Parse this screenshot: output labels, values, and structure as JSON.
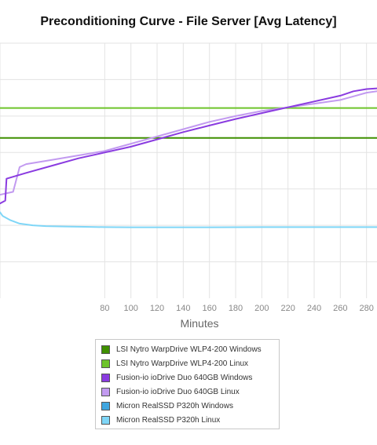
{
  "chart_data": {
    "type": "line",
    "title": "Preconditioning Curve - File Server [Avg Latency]",
    "xlabel": "Minutes",
    "ylabel": "",
    "xlim": [
      0,
      288
    ],
    "ylim": [
      0,
      17.5
    ],
    "x_ticks": [
      80,
      100,
      120,
      140,
      160,
      180,
      200,
      220,
      240,
      260,
      280
    ],
    "grid": true,
    "legend_position": "bottom-center",
    "series": [
      {
        "name": "LSI Nytro WarpDrive WLP4-200 Windows",
        "color": "#3f8f00",
        "x": [
          0,
          20,
          40,
          60,
          80,
          100,
          120,
          140,
          160,
          180,
          200,
          220,
          240,
          260,
          280,
          288
        ],
        "y": [
          11.0,
          11.0,
          11.0,
          11.0,
          11.0,
          11.0,
          11.0,
          11.0,
          11.0,
          11.0,
          11.0,
          11.0,
          11.0,
          11.0,
          11.0,
          11.0
        ]
      },
      {
        "name": "LSI Nytro WarpDrive WLP4-200 Linux",
        "color": "#6ec42a",
        "x": [
          0,
          20,
          40,
          60,
          80,
          100,
          120,
          140,
          160,
          180,
          200,
          220,
          240,
          260,
          280,
          288
        ],
        "y": [
          13.05,
          13.05,
          13.05,
          13.05,
          13.05,
          13.05,
          13.05,
          13.05,
          13.05,
          13.05,
          13.05,
          13.05,
          13.05,
          13.05,
          13.05,
          13.05
        ]
      },
      {
        "name": "Fusion-io ioDrive Duo 640GB Windows",
        "color": "#8a3be0",
        "x": [
          0,
          4,
          5,
          20,
          40,
          60,
          80,
          100,
          120,
          140,
          160,
          180,
          200,
          220,
          240,
          260,
          270,
          280,
          288
        ],
        "y": [
          6.5,
          6.7,
          8.2,
          8.6,
          9.1,
          9.6,
          10.0,
          10.4,
          10.9,
          11.4,
          11.85,
          12.3,
          12.7,
          13.1,
          13.5,
          13.9,
          14.2,
          14.35,
          14.4
        ]
      },
      {
        "name": "Fusion-io ioDrive Duo 640GB Linux",
        "color": "#c29af0",
        "x": [
          0,
          10,
          15,
          20,
          40,
          60,
          80,
          100,
          120,
          140,
          160,
          180,
          200,
          220,
          240,
          260,
          270,
          280,
          288
        ],
        "y": [
          7.1,
          7.3,
          9.0,
          9.2,
          9.5,
          9.8,
          10.1,
          10.6,
          11.1,
          11.6,
          12.1,
          12.5,
          12.85,
          13.1,
          13.35,
          13.6,
          13.85,
          14.1,
          14.2
        ]
      },
      {
        "name": "Micron RealSSD P320h Windows",
        "color": "#3fa6e0",
        "x": [],
        "y": []
      },
      {
        "name": "Micron RealSSD P320h Linux",
        "color": "#7fd6f7",
        "x": [
          0,
          2,
          8,
          15,
          25,
          35,
          50,
          65,
          80,
          100,
          120,
          160,
          200,
          240,
          280,
          288
        ],
        "y": [
          5.9,
          5.65,
          5.35,
          5.12,
          5.0,
          4.95,
          4.92,
          4.9,
          4.88,
          4.87,
          4.87,
          4.87,
          4.88,
          4.88,
          4.88,
          4.88
        ]
      }
    ]
  }
}
